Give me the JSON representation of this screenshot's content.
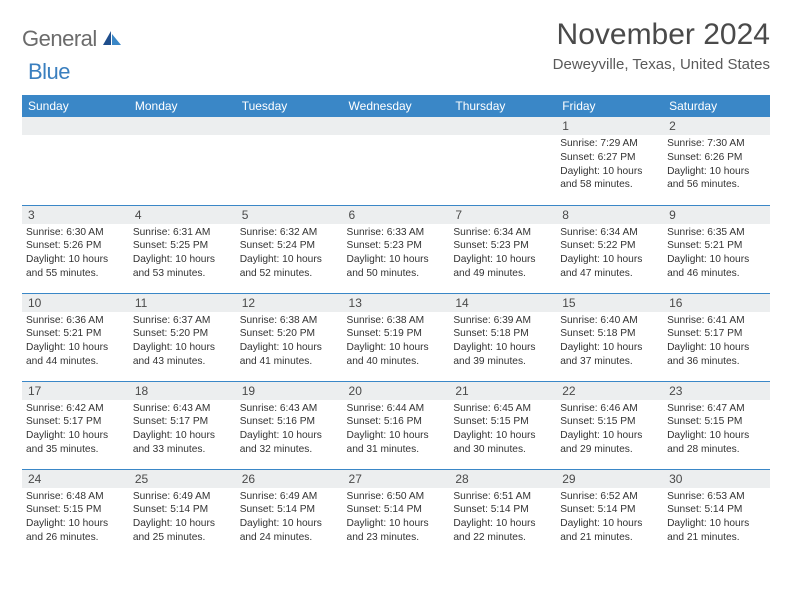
{
  "brand": {
    "word1": "General",
    "word2": "Blue"
  },
  "title": "November 2024",
  "location": "Deweyville, Texas, United States",
  "colors": {
    "header_bg": "#3a87c7",
    "header_text": "#ffffff",
    "row_divider": "#3a87c7",
    "daynum_bg": "#eceeef",
    "text": "#333333",
    "title_text": "#4a4a4a",
    "brand_gray": "#6b6b6b",
    "brand_blue": "#3a7fbf"
  },
  "day_headers": [
    "Sunday",
    "Monday",
    "Tuesday",
    "Wednesday",
    "Thursday",
    "Friday",
    "Saturday"
  ],
  "weeks": [
    [
      {
        "n": "",
        "sunrise": "",
        "sunset": "",
        "daylight1": "",
        "daylight2": ""
      },
      {
        "n": "",
        "sunrise": "",
        "sunset": "",
        "daylight1": "",
        "daylight2": ""
      },
      {
        "n": "",
        "sunrise": "",
        "sunset": "",
        "daylight1": "",
        "daylight2": ""
      },
      {
        "n": "",
        "sunrise": "",
        "sunset": "",
        "daylight1": "",
        "daylight2": ""
      },
      {
        "n": "",
        "sunrise": "",
        "sunset": "",
        "daylight1": "",
        "daylight2": ""
      },
      {
        "n": "1",
        "sunrise": "Sunrise: 7:29 AM",
        "sunset": "Sunset: 6:27 PM",
        "daylight1": "Daylight: 10 hours",
        "daylight2": "and 58 minutes."
      },
      {
        "n": "2",
        "sunrise": "Sunrise: 7:30 AM",
        "sunset": "Sunset: 6:26 PM",
        "daylight1": "Daylight: 10 hours",
        "daylight2": "and 56 minutes."
      }
    ],
    [
      {
        "n": "3",
        "sunrise": "Sunrise: 6:30 AM",
        "sunset": "Sunset: 5:26 PM",
        "daylight1": "Daylight: 10 hours",
        "daylight2": "and 55 minutes."
      },
      {
        "n": "4",
        "sunrise": "Sunrise: 6:31 AM",
        "sunset": "Sunset: 5:25 PM",
        "daylight1": "Daylight: 10 hours",
        "daylight2": "and 53 minutes."
      },
      {
        "n": "5",
        "sunrise": "Sunrise: 6:32 AM",
        "sunset": "Sunset: 5:24 PM",
        "daylight1": "Daylight: 10 hours",
        "daylight2": "and 52 minutes."
      },
      {
        "n": "6",
        "sunrise": "Sunrise: 6:33 AM",
        "sunset": "Sunset: 5:23 PM",
        "daylight1": "Daylight: 10 hours",
        "daylight2": "and 50 minutes."
      },
      {
        "n": "7",
        "sunrise": "Sunrise: 6:34 AM",
        "sunset": "Sunset: 5:23 PM",
        "daylight1": "Daylight: 10 hours",
        "daylight2": "and 49 minutes."
      },
      {
        "n": "8",
        "sunrise": "Sunrise: 6:34 AM",
        "sunset": "Sunset: 5:22 PM",
        "daylight1": "Daylight: 10 hours",
        "daylight2": "and 47 minutes."
      },
      {
        "n": "9",
        "sunrise": "Sunrise: 6:35 AM",
        "sunset": "Sunset: 5:21 PM",
        "daylight1": "Daylight: 10 hours",
        "daylight2": "and 46 minutes."
      }
    ],
    [
      {
        "n": "10",
        "sunrise": "Sunrise: 6:36 AM",
        "sunset": "Sunset: 5:21 PM",
        "daylight1": "Daylight: 10 hours",
        "daylight2": "and 44 minutes."
      },
      {
        "n": "11",
        "sunrise": "Sunrise: 6:37 AM",
        "sunset": "Sunset: 5:20 PM",
        "daylight1": "Daylight: 10 hours",
        "daylight2": "and 43 minutes."
      },
      {
        "n": "12",
        "sunrise": "Sunrise: 6:38 AM",
        "sunset": "Sunset: 5:20 PM",
        "daylight1": "Daylight: 10 hours",
        "daylight2": "and 41 minutes."
      },
      {
        "n": "13",
        "sunrise": "Sunrise: 6:38 AM",
        "sunset": "Sunset: 5:19 PM",
        "daylight1": "Daylight: 10 hours",
        "daylight2": "and 40 minutes."
      },
      {
        "n": "14",
        "sunrise": "Sunrise: 6:39 AM",
        "sunset": "Sunset: 5:18 PM",
        "daylight1": "Daylight: 10 hours",
        "daylight2": "and 39 minutes."
      },
      {
        "n": "15",
        "sunrise": "Sunrise: 6:40 AM",
        "sunset": "Sunset: 5:18 PM",
        "daylight1": "Daylight: 10 hours",
        "daylight2": "and 37 minutes."
      },
      {
        "n": "16",
        "sunrise": "Sunrise: 6:41 AM",
        "sunset": "Sunset: 5:17 PM",
        "daylight1": "Daylight: 10 hours",
        "daylight2": "and 36 minutes."
      }
    ],
    [
      {
        "n": "17",
        "sunrise": "Sunrise: 6:42 AM",
        "sunset": "Sunset: 5:17 PM",
        "daylight1": "Daylight: 10 hours",
        "daylight2": "and 35 minutes."
      },
      {
        "n": "18",
        "sunrise": "Sunrise: 6:43 AM",
        "sunset": "Sunset: 5:17 PM",
        "daylight1": "Daylight: 10 hours",
        "daylight2": "and 33 minutes."
      },
      {
        "n": "19",
        "sunrise": "Sunrise: 6:43 AM",
        "sunset": "Sunset: 5:16 PM",
        "daylight1": "Daylight: 10 hours",
        "daylight2": "and 32 minutes."
      },
      {
        "n": "20",
        "sunrise": "Sunrise: 6:44 AM",
        "sunset": "Sunset: 5:16 PM",
        "daylight1": "Daylight: 10 hours",
        "daylight2": "and 31 minutes."
      },
      {
        "n": "21",
        "sunrise": "Sunrise: 6:45 AM",
        "sunset": "Sunset: 5:15 PM",
        "daylight1": "Daylight: 10 hours",
        "daylight2": "and 30 minutes."
      },
      {
        "n": "22",
        "sunrise": "Sunrise: 6:46 AM",
        "sunset": "Sunset: 5:15 PM",
        "daylight1": "Daylight: 10 hours",
        "daylight2": "and 29 minutes."
      },
      {
        "n": "23",
        "sunrise": "Sunrise: 6:47 AM",
        "sunset": "Sunset: 5:15 PM",
        "daylight1": "Daylight: 10 hours",
        "daylight2": "and 28 minutes."
      }
    ],
    [
      {
        "n": "24",
        "sunrise": "Sunrise: 6:48 AM",
        "sunset": "Sunset: 5:15 PM",
        "daylight1": "Daylight: 10 hours",
        "daylight2": "and 26 minutes."
      },
      {
        "n": "25",
        "sunrise": "Sunrise: 6:49 AM",
        "sunset": "Sunset: 5:14 PM",
        "daylight1": "Daylight: 10 hours",
        "daylight2": "and 25 minutes."
      },
      {
        "n": "26",
        "sunrise": "Sunrise: 6:49 AM",
        "sunset": "Sunset: 5:14 PM",
        "daylight1": "Daylight: 10 hours",
        "daylight2": "and 24 minutes."
      },
      {
        "n": "27",
        "sunrise": "Sunrise: 6:50 AM",
        "sunset": "Sunset: 5:14 PM",
        "daylight1": "Daylight: 10 hours",
        "daylight2": "and 23 minutes."
      },
      {
        "n": "28",
        "sunrise": "Sunrise: 6:51 AM",
        "sunset": "Sunset: 5:14 PM",
        "daylight1": "Daylight: 10 hours",
        "daylight2": "and 22 minutes."
      },
      {
        "n": "29",
        "sunrise": "Sunrise: 6:52 AM",
        "sunset": "Sunset: 5:14 PM",
        "daylight1": "Daylight: 10 hours",
        "daylight2": "and 21 minutes."
      },
      {
        "n": "30",
        "sunrise": "Sunrise: 6:53 AM",
        "sunset": "Sunset: 5:14 PM",
        "daylight1": "Daylight: 10 hours",
        "daylight2": "and 21 minutes."
      }
    ]
  ]
}
